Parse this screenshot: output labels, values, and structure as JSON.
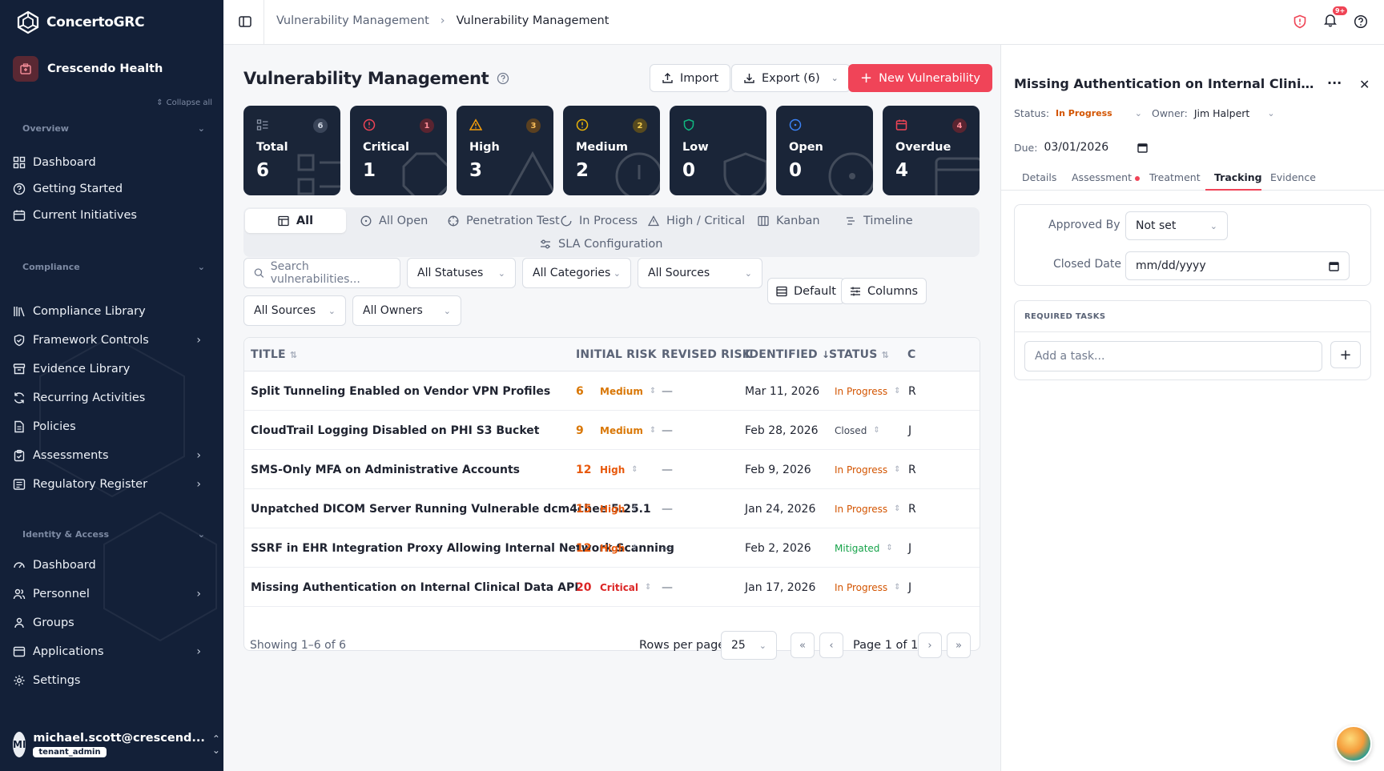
{
  "app": {
    "brand": "ConcertoGRC",
    "org": "Crescendo Health",
    "collapse_all": "Collapse all"
  },
  "sidebar": {
    "sections": [
      {
        "title": "Overview",
        "items": [
          {
            "label": "Dashboard",
            "icon": "grid-icon"
          },
          {
            "label": "Getting Started",
            "icon": "help-circle-icon"
          },
          {
            "label": "Current Initiatives",
            "icon": "calendar-icon"
          }
        ]
      },
      {
        "title": "Compliance",
        "items": [
          {
            "label": "Compliance Library",
            "icon": "library-icon"
          },
          {
            "label": "Framework Controls",
            "icon": "shield-check-icon"
          },
          {
            "label": "Evidence Library",
            "icon": "archive-icon"
          },
          {
            "label": "Recurring Activities",
            "icon": "refresh-icon"
          },
          {
            "label": "Policies",
            "icon": "file-text-icon"
          },
          {
            "label": "Assessments",
            "icon": "clipboard-check-icon"
          },
          {
            "label": "Regulatory Register",
            "icon": "register-icon"
          }
        ]
      },
      {
        "title": "Identity & Access",
        "items": [
          {
            "label": "Dashboard",
            "icon": "gauge-icon"
          },
          {
            "label": "Personnel",
            "icon": "users-icon"
          },
          {
            "label": "Groups",
            "icon": "group-icon"
          },
          {
            "label": "Applications",
            "icon": "app-window-icon"
          },
          {
            "label": "Settings",
            "icon": "gear-icon"
          }
        ]
      }
    ],
    "user": {
      "initials": "MI",
      "email": "michael.scott@crescend...",
      "role": "tenant_admin"
    }
  },
  "header": {
    "breadcrumb": [
      "Vulnerability Management",
      "Vulnerability Management"
    ],
    "notification_badge": "9+"
  },
  "main": {
    "title": "Vulnerability Management",
    "import_label": "Import",
    "export_label": "Export (6)",
    "new_label": "New Vulnerability",
    "stats": [
      {
        "label": "Total",
        "value": "6",
        "badge": "6",
        "color": "#8b95a8"
      },
      {
        "label": "Critical",
        "value": "1",
        "badge": "1",
        "color": "#ef4455"
      },
      {
        "label": "High",
        "value": "3",
        "badge": "3",
        "color": "#f59e0b"
      },
      {
        "label": "Medium",
        "value": "2",
        "badge": "2",
        "color": "#eab308"
      },
      {
        "label": "Low",
        "value": "0",
        "badge": "",
        "color": "#10b981"
      },
      {
        "label": "Open",
        "value": "0",
        "badge": "",
        "color": "#3b82f6"
      },
      {
        "label": "Overdue",
        "value": "4",
        "badge": "4",
        "color": "#ef4455"
      }
    ],
    "view_tabs": [
      "All",
      "All Open",
      "Penetration Test",
      "In Process",
      "High / Critical",
      "Kanban",
      "Timeline",
      "SLA Configuration"
    ],
    "filters": {
      "search_placeholder": "Search vulnerabilities...",
      "statuses": "All Statuses",
      "categories": "All Categories",
      "sources_1": "All Sources",
      "sources_2": "All Sources",
      "owners": "All Owners",
      "default_label": "Default",
      "columns_label": "Columns"
    },
    "table": {
      "headers": [
        "TITLE",
        "INITIAL RISK",
        "REVISED RISK",
        "IDENTIFIED",
        "STATUS",
        "C"
      ],
      "rows": [
        {
          "title": "Split Tunneling Enabled on Vendor VPN Profiles",
          "score": "6",
          "level": "Medium",
          "revised": "—",
          "identified": "Mar 11, 2026",
          "status": "In Progress",
          "owner": "R"
        },
        {
          "title": "CloudTrail Logging Disabled on PHI S3 Bucket",
          "score": "9",
          "level": "Medium",
          "revised": "—",
          "identified": "Feb 28, 2026",
          "status": "Closed",
          "owner": "J"
        },
        {
          "title": "SMS-Only MFA on Administrative Accounts",
          "score": "12",
          "level": "High",
          "revised": "—",
          "identified": "Feb 9, 2026",
          "status": "In Progress",
          "owner": "R"
        },
        {
          "title": "Unpatched DICOM Server Running Vulnerable dcm4chee 5.25.1",
          "score": "15",
          "level": "High",
          "revised": "—",
          "identified": "Jan 24, 2026",
          "status": "In Progress",
          "owner": "R"
        },
        {
          "title": "SSRF in EHR Integration Proxy Allowing Internal Network Scanning",
          "score": "12",
          "level": "High",
          "revised": "—",
          "identified": "Feb 2, 2026",
          "status": "Mitigated",
          "owner": "J"
        },
        {
          "title": "Missing Authentication on Internal Clinical Data API",
          "score": "20",
          "level": "Critical",
          "revised": "—",
          "identified": "Jan 17, 2026",
          "status": "In Progress",
          "owner": "J"
        }
      ]
    },
    "pagination": {
      "showing": "Showing 1–6 of 6",
      "rows_per_page_label": "Rows per page",
      "rows_per_page": "25",
      "page_text": "Page 1 of 1"
    }
  },
  "panel": {
    "title": "Missing Authentication on Internal Clinical Dat...",
    "status_label": "Status:",
    "status_value": "In Progress",
    "owner_label": "Owner:",
    "owner_value": "Jim Halpert",
    "due_label": "Due:",
    "due_value": "03/01/2026",
    "tabs": [
      "Details",
      "Assessment",
      "Treatment",
      "Tracking",
      "Evidence"
    ],
    "approved_by_label": "Approved By",
    "approved_by_value": "Not set",
    "closed_date_label": "Closed Date",
    "closed_date_value": "mm/dd/yyyy",
    "required_tasks_title": "REQUIRED TASKS",
    "task_placeholder": "Add a task..."
  }
}
